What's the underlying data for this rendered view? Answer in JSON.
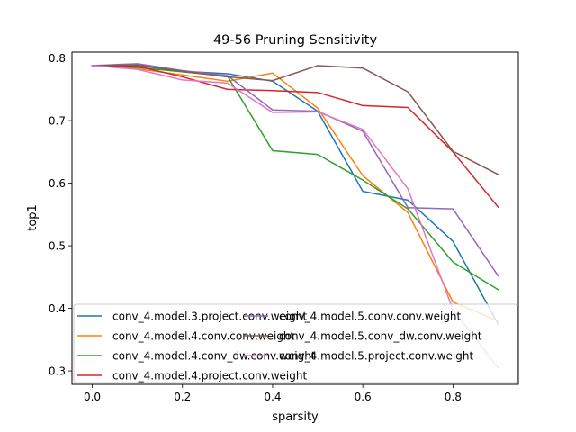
{
  "chart_data": {
    "type": "line",
    "title": "49-56 Pruning Sensitivity",
    "xlabel": "sparsity",
    "ylabel": "top1",
    "xlim": [
      -0.045,
      0.945
    ],
    "ylim": [
      0.2785,
      0.8095
    ],
    "grid": false,
    "legend_placement": "lower-left",
    "x": [
      0.0,
      0.1,
      0.2,
      0.3,
      0.4,
      0.5,
      0.6,
      0.7,
      0.8,
      0.9
    ],
    "x_ticks": [
      0.0,
      0.2,
      0.4,
      0.6,
      0.8
    ],
    "x_tick_labels": [
      "0.0",
      "0.2",
      "0.4",
      "0.6",
      "0.8"
    ],
    "y_ticks": [
      0.3,
      0.4,
      0.5,
      0.6,
      0.7,
      0.8
    ],
    "y_tick_labels": [
      "0.3",
      "0.4",
      "0.5",
      "0.6",
      "0.7",
      "0.8"
    ],
    "series": [
      {
        "name": "conv_4.model.3.project.conv.weight",
        "color": "#1f77b4",
        "values": [
          0.788,
          0.788,
          0.779,
          0.775,
          0.763,
          0.715,
          0.587,
          0.573,
          0.507,
          0.375
        ]
      },
      {
        "name": "conv_4.model.4.conv.conv.weight",
        "color": "#ff7f0e",
        "values": [
          0.788,
          0.783,
          0.773,
          0.763,
          0.776,
          0.72,
          0.612,
          0.553,
          0.41,
          0.38
        ]
      },
      {
        "name": "conv_4.model.4.conv_dw.conv.weight",
        "color": "#2ca02c",
        "values": [
          0.788,
          0.785,
          0.778,
          0.771,
          0.652,
          0.646,
          0.605,
          0.559,
          0.474,
          0.43
        ]
      },
      {
        "name": "conv_4.model.4.project.conv.weight",
        "color": "#d62728",
        "values": [
          0.788,
          0.787,
          0.77,
          0.75,
          0.748,
          0.745,
          0.724,
          0.721,
          0.65,
          0.562
        ]
      },
      {
        "name": "conv_4.model.5.conv.conv.weight",
        "color": "#9467bd",
        "values": [
          0.788,
          0.791,
          0.78,
          0.772,
          0.717,
          0.715,
          0.683,
          0.561,
          0.559,
          0.452
        ]
      },
      {
        "name": "conv_4.model.5.conv_dw.conv.weight",
        "color": "#8c564b",
        "values": [
          0.788,
          0.789,
          0.779,
          0.77,
          0.764,
          0.788,
          0.784,
          0.746,
          0.651,
          0.614
        ]
      },
      {
        "name": "conv_4.model.5.project.conv.weight",
        "color": "#e377c2",
        "values": [
          0.788,
          0.782,
          0.765,
          0.76,
          0.713,
          0.714,
          0.686,
          0.591,
          0.398,
          0.305
        ]
      }
    ]
  }
}
